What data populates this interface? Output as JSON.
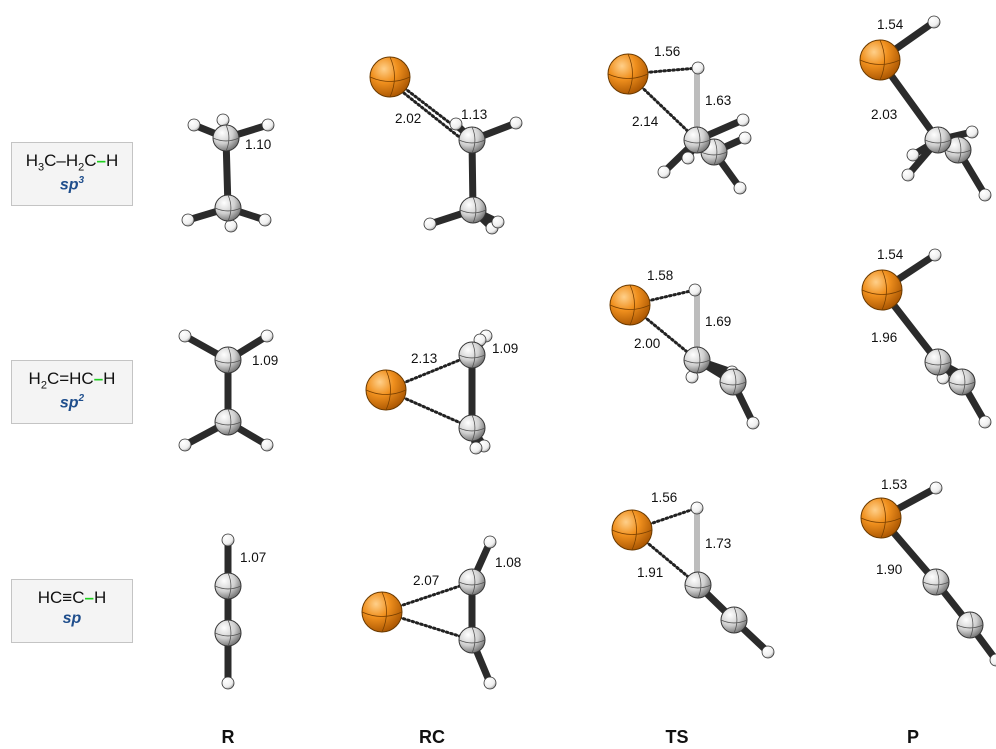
{
  "columns": [
    "R",
    "RC",
    "TS",
    "P"
  ],
  "rows": [
    {
      "formula_parts": [
        "H",
        "3",
        "C–H",
        "2",
        "C",
        "–",
        "H"
      ],
      "hybrid_base": "sp",
      "hybrid_sup": "3"
    },
    {
      "formula_parts": [
        "H",
        "2",
        "C=HC",
        "",
        "",
        "–",
        "H"
      ],
      "hybrid_base": "sp",
      "hybrid_sup": "2"
    },
    {
      "formula_parts": [
        "HC≡C",
        "",
        "",
        "",
        "",
        "–",
        "H"
      ],
      "hybrid_base": "sp",
      "hybrid_sup": ""
    }
  ],
  "distances": {
    "r1_R": "1.10",
    "r1_RC_a": "2.02",
    "r1_RC_b": "1.13",
    "r1_TS_a": "1.56",
    "r1_TS_b": "1.63",
    "r1_TS_c": "2.14",
    "r1_P_a": "1.54",
    "r1_P_b": "2.03",
    "r2_R": "1.09",
    "r2_RC_a": "2.13",
    "r2_RC_b": "1.09",
    "r2_TS_a": "1.58",
    "r2_TS_b": "1.69",
    "r2_TS_c": "2.00",
    "r2_P_a": "1.54",
    "r2_P_b": "1.96",
    "r3_R": "1.07",
    "r3_RC_a": "2.07",
    "r3_RC_b": "1.08",
    "r3_TS_a": "1.56",
    "r3_TS_b": "1.73",
    "r3_TS_c": "1.91",
    "r3_P_a": "1.53",
    "r3_P_b": "1.90"
  },
  "colors": {
    "metal": "#f0901e",
    "carbon": "#d6d6d6",
    "hydrogen": "#ffffff",
    "bond": "#2b2b2b",
    "tsbond": "#bdbdbd",
    "highlight": "#1fd01f",
    "hybrid": "#1f4e8c"
  }
}
